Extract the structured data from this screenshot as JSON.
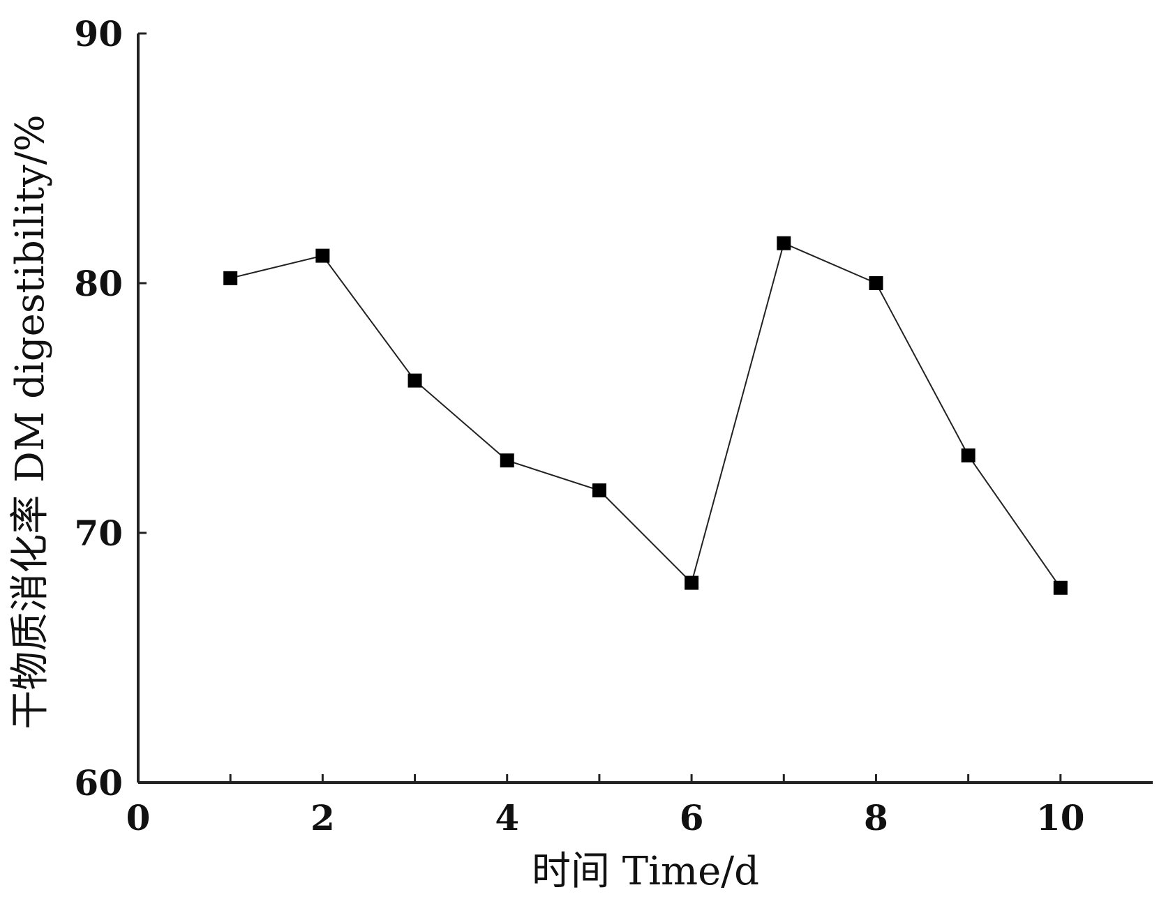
{
  "chart_data": {
    "type": "line",
    "title": "",
    "xlabel": "时间  Time/d",
    "ylabel": "干物质消化率  DM digestibility/%",
    "x": [
      1,
      2,
      3,
      4,
      5,
      6,
      7,
      8,
      9,
      10
    ],
    "series": [
      {
        "values": [
          80.2,
          81.1,
          76.1,
          72.9,
          71.7,
          68.0,
          81.6,
          80.0,
          73.1,
          67.8
        ]
      }
    ],
    "xlim": [
      0,
      11
    ],
    "ylim": [
      60,
      90
    ],
    "xticks": [
      "0",
      "2",
      "4",
      "6",
      "8",
      "10"
    ],
    "yticks": [
      "60",
      "70",
      "80",
      "90"
    ],
    "marker": "square",
    "grid": false,
    "colors": {
      "line": "#222222",
      "marker": "#000000"
    }
  }
}
